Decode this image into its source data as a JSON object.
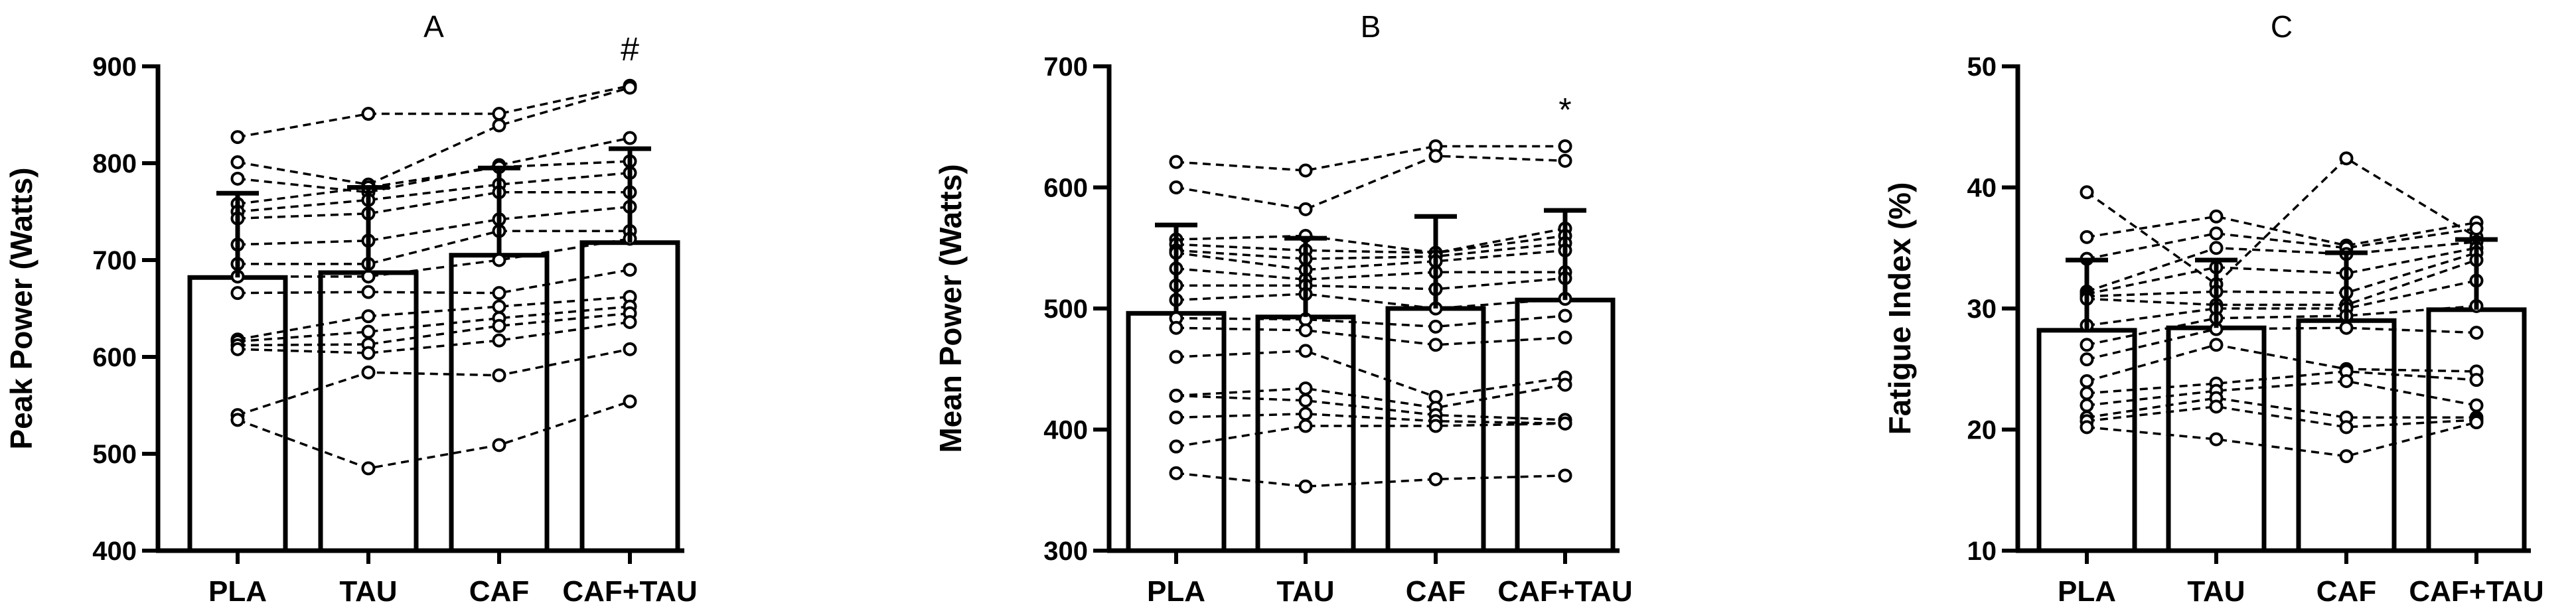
{
  "chart_data": [
    {
      "type": "bar",
      "panel_label": "A",
      "ylabel": "Peak  Power (Watts)",
      "categories": [
        "PLA",
        "TAU",
        "CAF",
        "CAF+TAU"
      ],
      "values": [
        682,
        687,
        705,
        718
      ],
      "sd": [
        87,
        88,
        90,
        97
      ],
      "ylim": [
        400,
        900
      ],
      "yticks": [
        "400",
        "500",
        "600",
        "700",
        "800",
        "900"
      ],
      "annotations": [
        {
          "category": "CAF+TAU",
          "text": "#"
        }
      ],
      "participants": [
        [
          827,
          851,
          851,
          880
        ],
        [
          801,
          778,
          839,
          878
        ],
        [
          784,
          770,
          798,
          826
        ],
        [
          758,
          775,
          796,
          802
        ],
        [
          750,
          762,
          778,
          790
        ],
        [
          743,
          748,
          770,
          770
        ],
        [
          716,
          720,
          742,
          755
        ],
        [
          696,
          696,
          730,
          730
        ],
        [
          683,
          683,
          700,
          722
        ],
        [
          666,
          667,
          666,
          690
        ],
        [
          618,
          642,
          652,
          662
        ],
        [
          616,
          626,
          640,
          652
        ],
        [
          612,
          613,
          632,
          645
        ],
        [
          608,
          604,
          617,
          636
        ],
        [
          540,
          584,
          581,
          608
        ],
        [
          535,
          485,
          509,
          554
        ]
      ]
    },
    {
      "type": "bar",
      "panel_label": "B",
      "ylabel": "Mean Power (Watts)",
      "categories": [
        "PLA",
        "TAU",
        "CAF",
        "CAF+TAU"
      ],
      "values": [
        496,
        493,
        500,
        507
      ],
      "sd": [
        73,
        65,
        76,
        74
      ],
      "ylim": [
        300,
        700
      ],
      "yticks": [
        "300",
        "400",
        "500",
        "600",
        "700"
      ],
      "annotations": [
        {
          "category": "CAF+TAU",
          "text": "*"
        }
      ],
      "participants": [
        [
          621,
          614,
          634,
          634
        ],
        [
          600,
          582,
          626,
          622
        ],
        [
          557,
          560,
          546,
          566
        ],
        [
          553,
          548,
          546,
          560
        ],
        [
          548,
          541,
          543,
          554
        ],
        [
          546,
          532,
          539,
          548
        ],
        [
          533,
          524,
          530,
          530
        ],
        [
          519,
          519,
          516,
          525
        ],
        [
          507,
          512,
          500,
          508
        ],
        [
          492,
          491,
          485,
          494
        ],
        [
          484,
          482,
          470,
          476
        ],
        [
          460,
          465,
          427,
          443
        ],
        [
          428,
          434,
          418,
          437
        ],
        [
          428,
          424,
          412,
          408
        ],
        [
          410,
          413,
          407,
          405
        ],
        [
          386,
          403,
          403,
          405
        ],
        [
          364,
          353,
          359,
          362
        ]
      ]
    },
    {
      "type": "bar",
      "panel_label": "C",
      "ylabel": "Fatigue Index (%)",
      "categories": [
        "PLA",
        "TAU",
        "CAF",
        "CAF+TAU"
      ],
      "values": [
        28.2,
        28.4,
        29.0,
        29.9
      ],
      "sd": [
        5.8,
        5.6,
        5.6,
        5.8
      ],
      "ylim": [
        10,
        50
      ],
      "yticks": [
        "10",
        "20",
        "30",
        "40",
        "50"
      ],
      "annotations": [],
      "participants": [
        [
          39.6,
          32.0,
          42.4,
          35.9
        ],
        [
          35.9,
          37.6,
          35.2,
          37.1
        ],
        [
          34.1,
          36.2,
          35.0,
          36.6
        ],
        [
          31.4,
          35.0,
          34.5,
          35.5
        ],
        [
          31.2,
          33.4,
          32.9,
          35.0
        ],
        [
          31.0,
          31.4,
          31.3,
          34.6
        ],
        [
          30.8,
          30.3,
          30.3,
          34.0
        ],
        [
          28.6,
          30.0,
          30.0,
          32.3
        ],
        [
          27.0,
          29.2,
          29.4,
          30.2
        ],
        [
          25.8,
          28.3,
          28.4,
          28.0
        ],
        [
          24.0,
          27.0,
          25.0,
          24.8
        ],
        [
          23.0,
          23.8,
          24.8,
          24.1
        ],
        [
          22.0,
          23.2,
          24.0,
          22.0
        ],
        [
          21.0,
          22.6,
          21.0,
          21.0
        ],
        [
          20.7,
          21.9,
          20.2,
          20.8
        ],
        [
          20.2,
          19.2,
          17.8,
          20.6
        ]
      ]
    }
  ]
}
